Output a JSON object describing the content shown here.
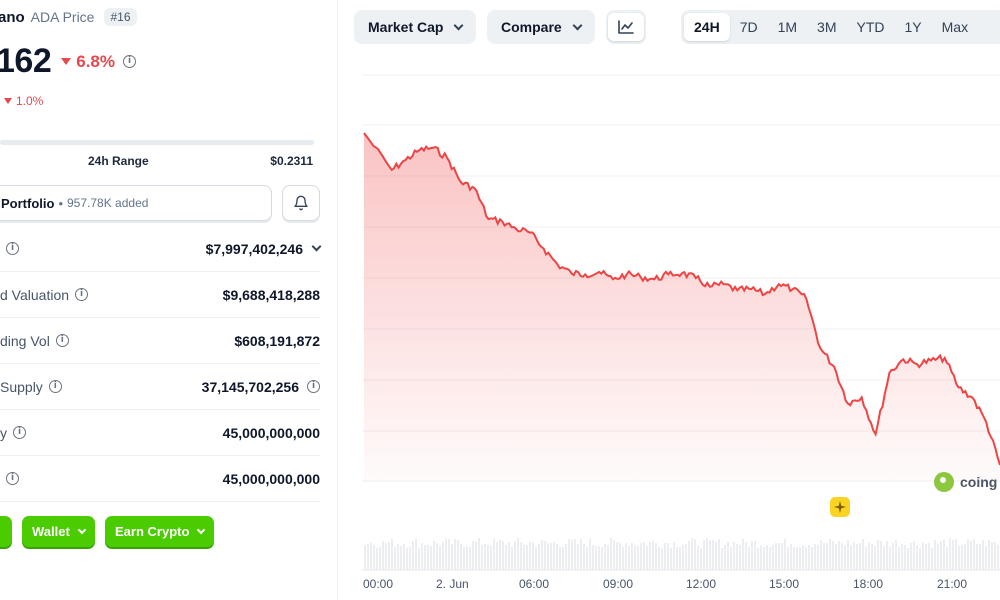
{
  "coin": {
    "name_fragment": "ano",
    "subtitle": "ADA Price",
    "rank": "#16",
    "price_fragment": "162",
    "change_24h": "6.8%",
    "sub_change": "1.0%"
  },
  "range": {
    "label": "24h Range",
    "high": "$0.2311"
  },
  "portfolio": {
    "label": "Portfolio",
    "added": "957.78K added"
  },
  "stats": [
    {
      "label": "",
      "value": "$7,997,402,246",
      "has_chevron": true,
      "value_info": false
    },
    {
      "label": "d Valuation",
      "value": "$9,688,418,288",
      "has_chevron": false,
      "value_info": false
    },
    {
      "label": "ding Vol",
      "value": "$608,191,872",
      "has_chevron": false,
      "value_info": false
    },
    {
      "label": "Supply",
      "value": "37,145,702,256",
      "has_chevron": false,
      "value_info": true
    },
    {
      "label": "y",
      "value": "45,000,000,000",
      "has_chevron": false,
      "value_info": false
    },
    {
      "label": "",
      "value": "45,000,000,000",
      "has_chevron": false,
      "value_info": false
    }
  ],
  "buttons": {
    "wallet": "Wallet",
    "earn": "Earn Crypto"
  },
  "toolbar": {
    "market_cap": "Market Cap",
    "compare": "Compare",
    "chart_icon": "line-chart-icon",
    "ranges": [
      "24H",
      "7D",
      "1M",
      "3M",
      "YTD",
      "1Y",
      "Max"
    ],
    "active_range": "24H"
  },
  "watermark": "coing",
  "colors": {
    "down": "#e5484d",
    "line": "#ef4444",
    "accent_green": "#4bcc00"
  },
  "chart_data": {
    "type": "area",
    "x_tick_labels": [
      "00:00",
      "2. Jun",
      "06:00",
      "09:00",
      "12:00",
      "15:00",
      "18:00",
      "21:00"
    ],
    "x_hours": [
      0,
      1.0,
      1.5,
      2.0,
      2.5,
      3.0,
      3.5,
      4.0,
      4.5,
      5.0,
      5.5,
      6.0,
      6.5,
      7.0,
      7.5,
      8.0,
      8.5,
      9.0,
      9.5,
      10.0,
      10.5,
      11.0,
      11.5,
      12.0,
      12.5,
      13.0,
      13.5,
      14.0,
      14.5,
      15.0,
      15.5,
      16.0,
      16.5,
      17.0,
      17.5,
      18.0,
      18.5,
      19.0,
      19.5,
      20.0,
      20.5,
      21.0,
      21.5,
      22.0,
      22.5,
      23.0
    ],
    "values": [
      100,
      97.0,
      97.8,
      98.6,
      98.8,
      98.0,
      96.0,
      95.5,
      93.0,
      92.8,
      92.2,
      91.9,
      90.6,
      89.3,
      88.6,
      88.5,
      88.7,
      88.1,
      88.5,
      88.3,
      88.1,
      88.5,
      88.6,
      88.2,
      87.5,
      87.7,
      87.2,
      87.3,
      86.9,
      87.7,
      87.3,
      86.5,
      82.5,
      81.0,
      78.0,
      78.5,
      75.5,
      80.5,
      81.6,
      81.2,
      81.5,
      81.7,
      79.3,
      78.5,
      76.5,
      73.0
    ],
    "grid": true,
    "legend": "none"
  }
}
